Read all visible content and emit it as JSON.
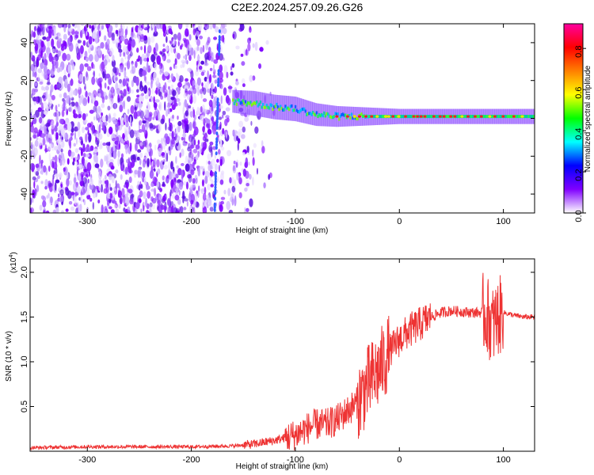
{
  "title": "C2E2.2024.257.09.26.G26",
  "chart_data": [
    {
      "type": "heatmap",
      "title": "C2E2.2024.257.09.26.G26",
      "xlabel": "Height of straight line (km)",
      "ylabel": "Frequency (Hz)",
      "xlim": [
        -355,
        130
      ],
      "ylim": [
        -50,
        50
      ],
      "xticks": [
        -300,
        -200,
        -100,
        0,
        100
      ],
      "yticks": [
        -40,
        -20,
        0,
        20,
        40
      ],
      "colorbar": {
        "label": "Normalized spectral amplitude",
        "range": [
          0.0,
          0.92
        ],
        "ticks": [
          "0.0",
          "0.2",
          "0.4",
          "0.6",
          "0.8"
        ],
        "colors": [
          "#ffffff",
          "#8000ff",
          "#0000ff",
          "#00ffff",
          "#00ff00",
          "#ffff00",
          "#ff8000",
          "#ff0000",
          "#ff00a0"
        ]
      },
      "signal_band": [
        {
          "x": -160,
          "f": 9,
          "width": 8
        },
        {
          "x": -140,
          "f": 8,
          "width": 9
        },
        {
          "x": -120,
          "f": 6,
          "width": 9
        },
        {
          "x": -100,
          "f": 5,
          "width": 9
        },
        {
          "x": -80,
          "f": 2,
          "width": 8
        },
        {
          "x": -60,
          "f": 1,
          "width": 7
        },
        {
          "x": -40,
          "f": 1,
          "width": 6
        },
        {
          "x": -20,
          "f": 1,
          "width": 5
        },
        {
          "x": 0,
          "f": 1,
          "width": 4
        },
        {
          "x": 50,
          "f": 1,
          "width": 4
        },
        {
          "x": 100,
          "f": 1,
          "width": 4
        },
        {
          "x": 130,
          "f": 1,
          "width": 4
        }
      ],
      "grid": false,
      "legend": "colorbar-right"
    },
    {
      "type": "line",
      "xlabel": "Height of straight line (km)",
      "ylabel": "SNR (10 * v/v)",
      "yscale_note": "(x10",
      "yscale_exp": "4",
      "xlim": [
        -355,
        130
      ],
      "ylim": [
        0,
        2.15
      ],
      "xticks": [
        -300,
        -200,
        -100,
        0,
        100
      ],
      "yticks": [
        0.5,
        1.0,
        1.5,
        2.0
      ],
      "ytick_labels": [
        "0.5",
        "1.0",
        "1.5",
        "2.0"
      ],
      "color": "#ee3333",
      "series": [
        {
          "x": [
            -355,
            -300,
            -250,
            -200,
            -160,
            -140,
            -120,
            -100,
            -90,
            -80,
            -70,
            -60,
            -50,
            -40,
            -30,
            -20,
            -15,
            -10,
            0,
            10,
            20,
            30,
            40,
            50,
            60,
            70,
            80,
            85,
            90,
            95,
            100,
            110,
            120,
            130
          ],
          "values": [
            0.04,
            0.05,
            0.05,
            0.05,
            0.06,
            0.08,
            0.12,
            0.18,
            0.25,
            0.3,
            0.3,
            0.35,
            0.45,
            0.55,
            0.75,
            0.9,
            1.0,
            1.1,
            1.25,
            1.35,
            1.42,
            1.5,
            1.55,
            1.57,
            1.56,
            1.55,
            1.55,
            1.5,
            1.4,
            1.5,
            1.55,
            1.52,
            1.5,
            1.5
          ]
        }
      ],
      "grid": false
    }
  ]
}
